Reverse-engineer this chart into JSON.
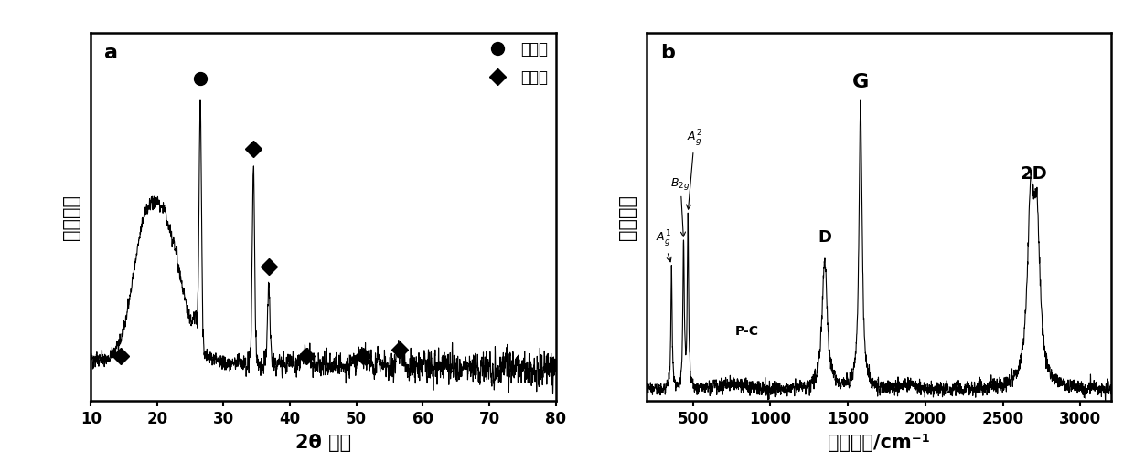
{
  "panel_a": {
    "label": "a",
    "xlabel": "2θ 角度",
    "ylabel": "相对强度",
    "xlim": [
      10,
      80
    ],
    "xticks": [
      10,
      20,
      30,
      40,
      50,
      60,
      70,
      80
    ],
    "legend_graphene": "石墨烯",
    "legend_bp": "黑磷烯"
  },
  "panel_b": {
    "label": "b",
    "xlabel": "拉曼位移/cm⁻¹",
    "ylabel": "相对强度",
    "xlim": [
      200,
      3200
    ],
    "xticks": [
      500,
      1000,
      1500,
      2000,
      2500,
      3000
    ]
  },
  "bg_color": "#ffffff",
  "line_color": "#000000"
}
